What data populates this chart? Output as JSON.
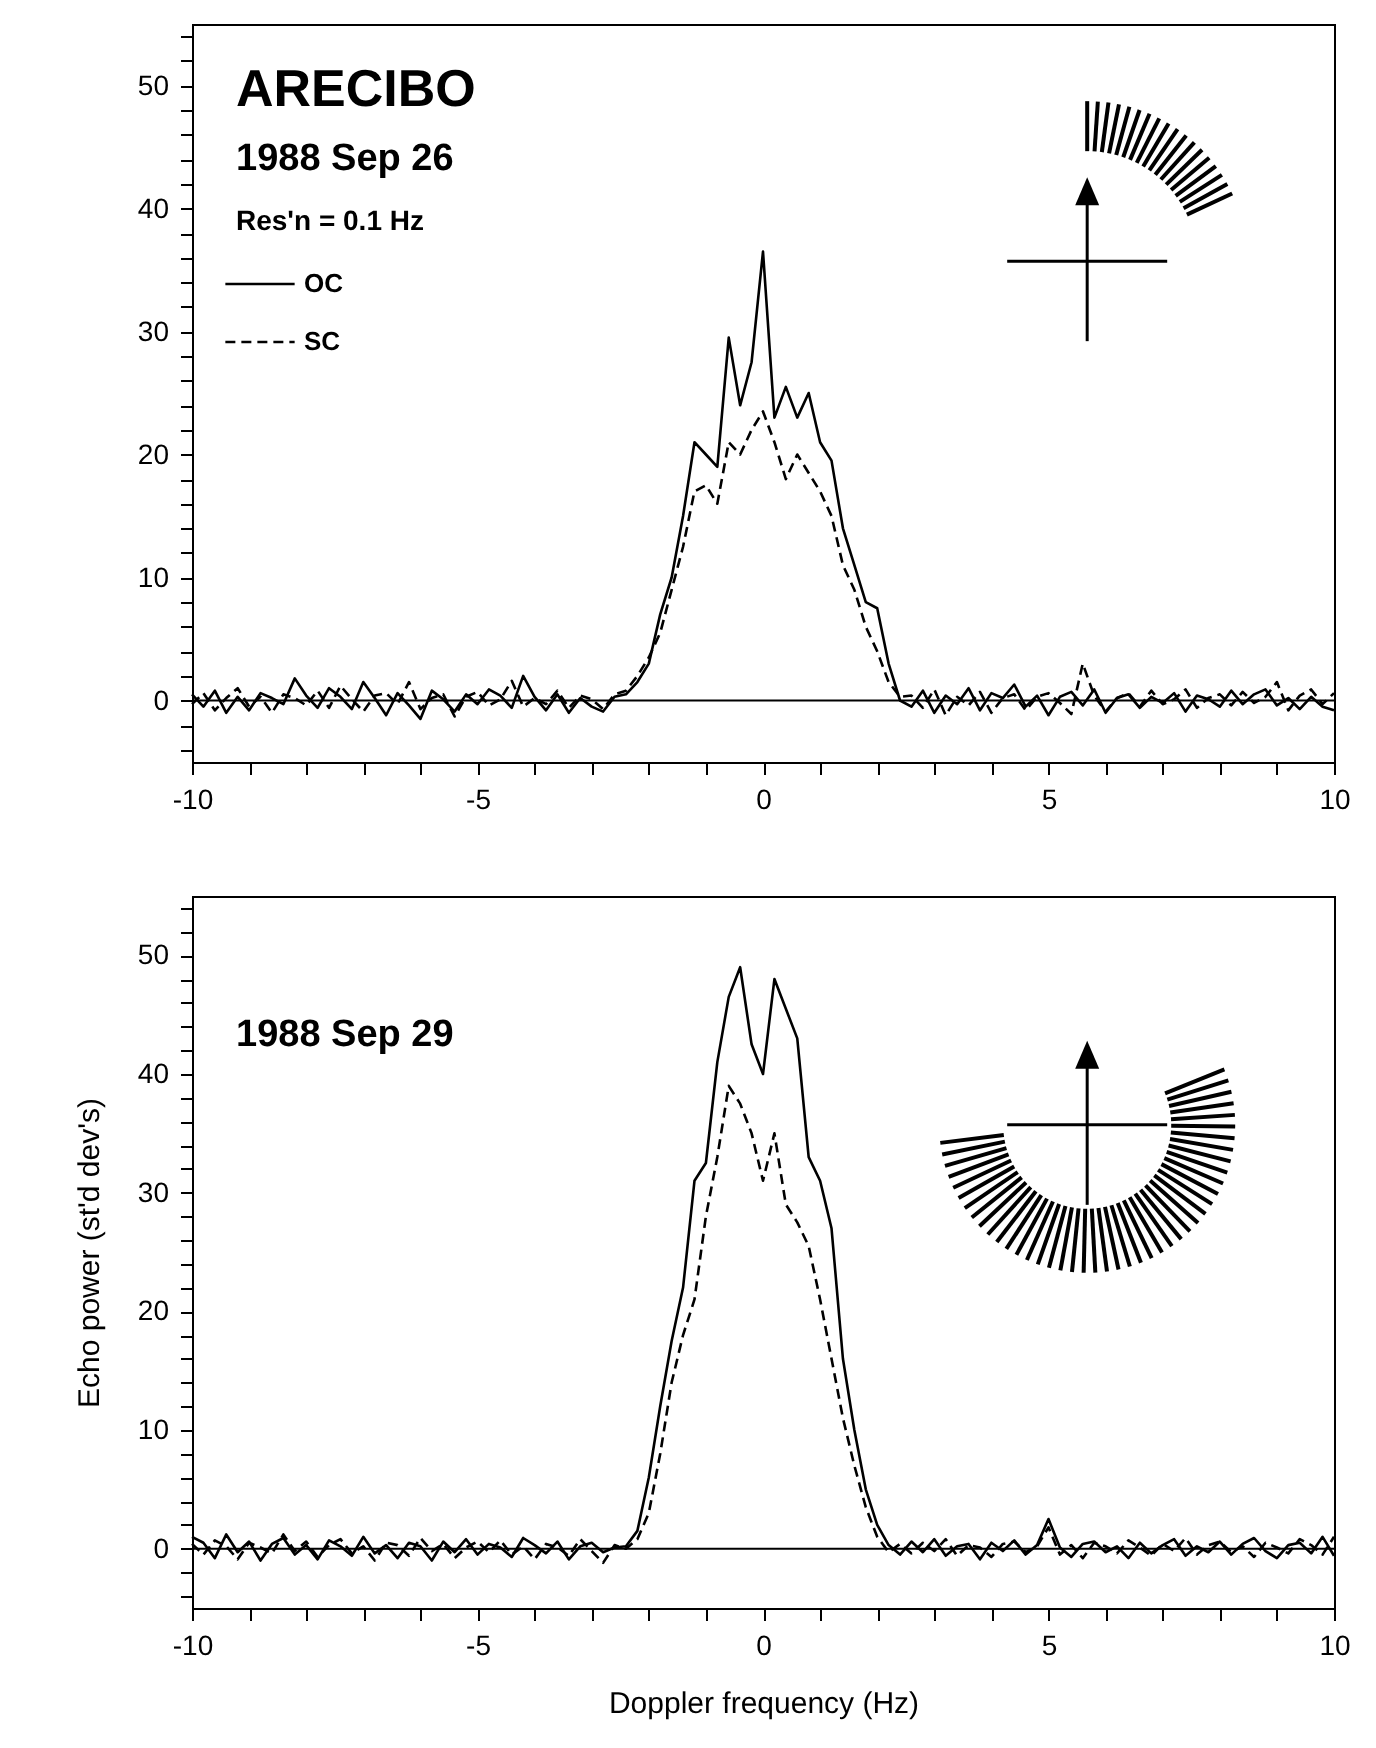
{
  "chart_data": [
    {
      "type": "line",
      "title": "ARECIBO",
      "subtitle": "1988 Sep 26",
      "annotations": [
        "Res'n = 0.1 Hz"
      ],
      "x": [
        -10,
        -9.8,
        -9.6,
        -9.4,
        -9.2,
        -9,
        -8.8,
        -8.6,
        -8.4,
        -8.2,
        -8,
        -7.8,
        -7.6,
        -7.4,
        -7.2,
        -7,
        -6.8,
        -6.6,
        -6.4,
        -6.2,
        -6,
        -5.8,
        -5.6,
        -5.4,
        -5.2,
        -5,
        -4.8,
        -4.6,
        -4.4,
        -4.2,
        -4,
        -3.8,
        -3.6,
        -3.4,
        -3.2,
        -3,
        -2.8,
        -2.6,
        -2.4,
        -2.2,
        -2,
        -1.8,
        -1.6,
        -1.4,
        -1.2,
        -1,
        -0.8,
        -0.6,
        -0.4,
        -0.2,
        0,
        0.2,
        0.4,
        0.6,
        0.8,
        1,
        1.2,
        1.4,
        1.6,
        1.8,
        2,
        2.2,
        2.4,
        2.6,
        2.8,
        3,
        3.2,
        3.4,
        3.6,
        3.8,
        4,
        4.2,
        4.4,
        4.6,
        4.8,
        5,
        5.2,
        5.4,
        5.6,
        5.8,
        6,
        6.2,
        6.4,
        6.6,
        6.8,
        7,
        7.2,
        7.4,
        7.6,
        7.8,
        8,
        8.2,
        8.4,
        8.6,
        8.8,
        9,
        9.2,
        9.4,
        9.6,
        9.8,
        10
      ],
      "series": [
        {
          "name": "OC",
          "color": "#000000",
          "line_style": "solid",
          "values": [
            0.5,
            -0.5,
            0.8,
            -1,
            0.3,
            -0.8,
            0.6,
            0.2,
            -0.3,
            1.8,
            0.4,
            -0.6,
            1,
            0.3,
            -0.7,
            1.5,
            0.2,
            -1.2,
            0.6,
            -0.4,
            -1.5,
            0.8,
            0.1,
            -0.9,
            0.5,
            -0.3,
            0.9,
            0.4,
            -0.6,
            2,
            0.3,
            -0.8,
            0.5,
            -1,
            0.2,
            -0.5,
            -0.9,
            0.3,
            0.5,
            1.5,
            3,
            7,
            10,
            15,
            21,
            20,
            19,
            29.5,
            24,
            27.5,
            36.5,
            23,
            25.5,
            23,
            25,
            21,
            19.5,
            14,
            11,
            8,
            7.5,
            3,
            0,
            -0.5,
            0.8,
            -1,
            0.4,
            -0.3,
            1,
            -0.8,
            0.6,
            0.2,
            1.3,
            -0.5,
            0.4,
            -1.2,
            0.3,
            0.7,
            -0.4,
            0.9,
            -1,
            0.2,
            0.5,
            -0.6,
            0.3,
            -0.2,
            0.6,
            -0.9,
            0.4,
            0.1,
            -0.5,
            0.8,
            -0.3,
            0.5,
            0.9,
            -0.4,
            0.2,
            -0.7,
            0.3,
            -0.5,
            -0.8
          ]
        },
        {
          "name": "SC",
          "color": "#000000",
          "line_style": "dashed",
          "values": [
            -0.3,
            0.6,
            -0.8,
            0.2,
            1,
            -0.5,
            0.3,
            -1,
            0.5,
            0.2,
            -0.4,
            0.8,
            -0.6,
            1.2,
            0.1,
            -0.9,
            0.4,
            0.6,
            -0.3,
            1.5,
            -0.7,
            0.2,
            0.5,
            -1.3,
            0.3,
            0.7,
            -0.4,
            0.1,
            1.6,
            -0.5,
            0.2,
            -0.3,
            0.8,
            -0.6,
            0.4,
            0.1,
            -0.7,
            0.5,
            0.8,
            2,
            3.5,
            5.5,
            9,
            12.5,
            17,
            17.5,
            16,
            21,
            20,
            22,
            23.5,
            21,
            18,
            20,
            18.5,
            17,
            15,
            11,
            9,
            6,
            4,
            1.5,
            0.3,
            0.4,
            -0.6,
            0.9,
            -1.2,
            0.3,
            -0.4,
            0.7,
            -1,
            0.2,
            0.5,
            -0.8,
            0.3,
            0.6,
            -0.2,
            -1.1,
            3,
            0.4,
            -0.9,
            0.2,
            0.6,
            -0.5,
            0.8,
            -0.3,
            0.1,
            0.9,
            -0.6,
            0.2,
            0.5,
            -0.4,
            0.7,
            -0.2,
            0.3,
            1.5,
            -0.8,
            0.4,
            0.9,
            -0.3,
            0.6
          ]
        }
      ],
      "xlim": [
        -10,
        10
      ],
      "ylim": [
        -5,
        55
      ],
      "xticks": [
        -10,
        {
          "value": -9,
          "label": null
        },
        {
          "value": -8,
          "label": null
        },
        {
          "value": -7,
          "label": null
        },
        {
          "value": -6,
          "label": null
        },
        -5,
        {
          "value": -4,
          "label": null
        },
        {
          "value": -3,
          "label": null
        },
        {
          "value": -2,
          "label": null
        },
        {
          "value": -1,
          "label": null
        },
        0,
        {
          "value": 1,
          "label": null
        },
        {
          "value": 2,
          "label": null
        },
        {
          "value": 3,
          "label": null
        },
        {
          "value": 4,
          "label": null
        },
        5,
        {
          "value": 6,
          "label": null
        },
        {
          "value": 7,
          "label": null
        },
        {
          "value": 8,
          "label": null
        },
        {
          "value": 9,
          "label": null
        },
        10
      ],
      "yticks": [
        {
          "value": -4,
          "label": null
        },
        {
          "value": -2,
          "label": null
        },
        0,
        {
          "value": 2,
          "label": null
        },
        {
          "value": 4,
          "label": null
        },
        {
          "value": 6,
          "label": null
        },
        {
          "value": 8,
          "label": null
        },
        10,
        {
          "value": 12,
          "label": null
        },
        {
          "value": 14,
          "label": null
        },
        {
          "value": 16,
          "label": null
        },
        {
          "value": 18,
          "label": null
        },
        20,
        {
          "value": 22,
          "label": null
        },
        {
          "value": 24,
          "label": null
        },
        {
          "value": 26,
          "label": null
        },
        {
          "value": 28,
          "label": null
        },
        30,
        {
          "value": 32,
          "label": null
        },
        {
          "value": 34,
          "label": null
        },
        {
          "value": 36,
          "label": null
        },
        {
          "value": 38,
          "label": null
        },
        40,
        {
          "value": 42,
          "label": null
        },
        {
          "value": 44,
          "label": null
        },
        {
          "value": 46,
          "label": null
        },
        {
          "value": 48,
          "label": null
        },
        50,
        {
          "value": 52,
          "label": null
        },
        {
          "value": 54,
          "label": null
        }
      ],
      "ref_lines": [
        {
          "axis": "y",
          "value": 0
        }
      ],
      "legend": "top left",
      "grid": false,
      "marker": "none"
    },
    {
      "type": "line",
      "title": "1988 Sep 29",
      "xlabel": "Doppler frequency (Hz)",
      "ylabel": "Echo power (st'd dev's)",
      "x": [
        -10,
        -9.8,
        -9.6,
        -9.4,
        -9.2,
        -9,
        -8.8,
        -8.6,
        -8.4,
        -8.2,
        -8,
        -7.8,
        -7.6,
        -7.4,
        -7.2,
        -7,
        -6.8,
        -6.6,
        -6.4,
        -6.2,
        -6,
        -5.8,
        -5.6,
        -5.4,
        -5.2,
        -5,
        -4.8,
        -4.6,
        -4.4,
        -4.2,
        -4,
        -3.8,
        -3.6,
        -3.4,
        -3.2,
        -3,
        -2.8,
        -2.6,
        -2.4,
        -2.2,
        -2,
        -1.8,
        -1.6,
        -1.4,
        -1.2,
        -1,
        -0.8,
        -0.6,
        -0.4,
        -0.2,
        0,
        0.2,
        0.4,
        0.6,
        0.8,
        1,
        1.2,
        1.4,
        1.6,
        1.8,
        2,
        2.2,
        2.4,
        2.6,
        2.8,
        3,
        3.2,
        3.4,
        3.6,
        3.8,
        4,
        4.2,
        4.4,
        4.6,
        4.8,
        5,
        5.2,
        5.4,
        5.6,
        5.8,
        6,
        6.2,
        6.4,
        6.6,
        6.8,
        7,
        7.2,
        7.4,
        7.6,
        7.8,
        8,
        8.2,
        8.4,
        8.6,
        8.8,
        9,
        9.2,
        9.4,
        9.6,
        9.8,
        10
      ],
      "series": [
        {
          "color": "#000000",
          "line_style": "solid",
          "values": [
            1,
            0.5,
            -0.8,
            1.2,
            -0.3,
            0.6,
            -1,
            0.4,
            0.9,
            -0.5,
            0.3,
            -0.9,
            0.7,
            0.2,
            -0.6,
            1,
            -0.4,
            0.3,
            -0.8,
            0.5,
            0.2,
            -1,
            0.6,
            -0.3,
            0.8,
            -0.5,
            0.4,
            0.1,
            -0.7,
            0.9,
            0.3,
            -0.4,
            0.6,
            -0.9,
            0.2,
            0.5,
            -0.3,
            0.1,
            0.2,
            1.5,
            6,
            12,
            17.5,
            22,
            31,
            32.5,
            41,
            46.5,
            49,
            42.5,
            40,
            48,
            45.5,
            43,
            33,
            31,
            27,
            16,
            10,
            5,
            2,
            0.3,
            -0.5,
            0.6,
            -0.3,
            0.8,
            -0.6,
            0.2,
            0.4,
            -0.9,
            0.5,
            -0.2,
            0.7,
            -0.5,
            0.3,
            2.5,
            0.1,
            -0.7,
            0.4,
            0.6,
            -0.3,
            0.2,
            -0.8,
            0.5,
            -0.4,
            0.3,
            0.8,
            -0.6,
            0.2,
            -0.3,
            0.6,
            -0.5,
            0.4,
            0.9,
            -0.2,
            -0.8,
            0.3,
            0.5,
            -0.4,
            1,
            -0.6
          ]
        },
        {
          "color": "#000000",
          "line_style": "dashed",
          "values": [
            0.4,
            -0.5,
            0.7,
            0.2,
            -0.9,
            0.5,
            0.1,
            -0.4,
            1.2,
            -0.2,
            0.6,
            -0.7,
            0.3,
            0.8,
            -0.4,
            0.2,
            -1,
            0.5,
            0.3,
            -0.6,
            0.9,
            -0.2,
            0.4,
            -0.8,
            0.1,
            0.6,
            -0.3,
            0.7,
            -0.5,
            0.2,
            -0.9,
            0.4,
            0.1,
            -0.6,
            0.8,
            -0.2,
            -1.2,
            0.3,
            0,
            0.8,
            3,
            8,
            14,
            18,
            21,
            28,
            33,
            39,
            37.5,
            35,
            31,
            35,
            29,
            27.5,
            25.5,
            21,
            16,
            11,
            7,
            3.5,
            1,
            -0.3,
            0.4,
            -0.4,
            0.5,
            -0.2,
            0.8,
            -0.6,
            0.3,
            0.1,
            -0.7,
            0.4,
            0.6,
            -0.3,
            0.2,
            1.8,
            -0.5,
            0.3,
            -0.8,
            0.5,
            0.2,
            -0.4,
            0.7,
            0.1,
            -0.6,
            0.4,
            -0.2,
            0.9,
            -0.5,
            0.3,
            0.6,
            -0.3,
            0.2,
            -0.7,
            0.5,
            0.1,
            -0.4,
            0.8,
            0.3,
            -0.5,
            1
          ]
        }
      ],
      "xlim": [
        -10,
        10
      ],
      "ylim": [
        -5,
        55
      ],
      "xticks": [
        -10,
        {
          "value": -9,
          "label": null
        },
        {
          "value": -8,
          "label": null
        },
        {
          "value": -7,
          "label": null
        },
        {
          "value": -6,
          "label": null
        },
        -5,
        {
          "value": -4,
          "label": null
        },
        {
          "value": -3,
          "label": null
        },
        {
          "value": -2,
          "label": null
        },
        {
          "value": -1,
          "label": null
        },
        0,
        {
          "value": 1,
          "label": null
        },
        {
          "value": 2,
          "label": null
        },
        {
          "value": 3,
          "label": null
        },
        {
          "value": 4,
          "label": null
        },
        5,
        {
          "value": 6,
          "label": null
        },
        {
          "value": 7,
          "label": null
        },
        {
          "value": 8,
          "label": null
        },
        {
          "value": 9,
          "label": null
        },
        10
      ],
      "yticks": [
        {
          "value": -4,
          "label": null
        },
        {
          "value": -2,
          "label": null
        },
        0,
        {
          "value": 2,
          "label": null
        },
        {
          "value": 4,
          "label": null
        },
        {
          "value": 6,
          "label": null
        },
        {
          "value": 8,
          "label": null
        },
        10,
        {
          "value": 12,
          "label": null
        },
        {
          "value": 14,
          "label": null
        },
        {
          "value": 16,
          "label": null
        },
        {
          "value": 18,
          "label": null
        },
        20,
        {
          "value": 22,
          "label": null
        },
        {
          "value": 24,
          "label": null
        },
        {
          "value": 26,
          "label": null
        },
        {
          "value": 28,
          "label": null
        },
        30,
        {
          "value": 32,
          "label": null
        },
        {
          "value": 34,
          "label": null
        },
        {
          "value": 36,
          "label": null
        },
        {
          "value": 38,
          "label": null
        },
        40,
        {
          "value": 42,
          "label": null
        },
        {
          "value": 44,
          "label": null
        },
        {
          "value": 46,
          "label": null
        },
        {
          "value": 48,
          "label": null
        },
        50,
        {
          "value": 52,
          "label": null
        },
        {
          "value": 54,
          "label": null
        }
      ],
      "ref_lines": [
        {
          "axis": "y",
          "value": 0
        }
      ],
      "grid": false,
      "marker": "none"
    }
  ]
}
